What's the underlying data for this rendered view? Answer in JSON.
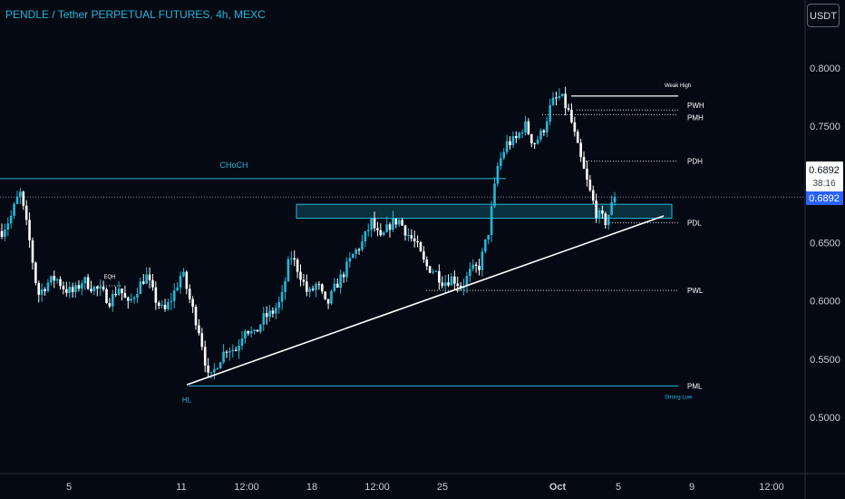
{
  "header": {
    "title": "PENDLE / Tether PERPETUAL FUTURES, 4h, MEXC",
    "currency_button": "USDT"
  },
  "colors": {
    "background": "#050913",
    "up": "#22b8d8",
    "down": "#ffffff",
    "accent": "#22b8d8",
    "price_badge": "#2962ff"
  },
  "chart_data": {
    "type": "candlestick",
    "instrument": "PENDLE / Tether PERPETUAL FUTURES",
    "timeframe": "4h",
    "exchange": "MEXC",
    "y_axis": {
      "ticks": [
        "0.8000",
        "0.7500",
        "0.7000",
        "0.6500",
        "0.6000",
        "0.5500",
        "0.5000"
      ],
      "ylim": [
        0.455,
        0.83
      ]
    },
    "x_axis": {
      "ticks": [
        "5",
        "11",
        "12:00",
        "18",
        "12:00",
        "25",
        "Oct",
        "5",
        "9",
        "12:00"
      ]
    },
    "current_price": {
      "close_label": "0.6892",
      "countdown": "38:16",
      "last_label": "0.6892",
      "value": 0.6892
    },
    "levels": [
      {
        "label": "PWH",
        "value": 0.764
      },
      {
        "label": "PMH",
        "value": 0.76
      },
      {
        "label": "PDH",
        "value": 0.72
      },
      {
        "label": "PDL",
        "value": 0.667
      },
      {
        "label": "PWL",
        "value": 0.609
      },
      {
        "label": "PML",
        "value": 0.527
      }
    ],
    "annotations": {
      "choch": {
        "label": "CHoCH",
        "value": 0.705
      },
      "eqh": {
        "label": "EQH",
        "value": 0.613
      },
      "weak_high": {
        "label": "Weak High",
        "value": 0.776
      },
      "strong_low": {
        "label": "Strong Low"
      },
      "hl": {
        "label": "HL",
        "value": 0.527
      },
      "demand_zone": {
        "top": 0.683,
        "bottom": 0.671
      },
      "trendline": {
        "from_value": 0.528,
        "to_value": 0.673
      }
    },
    "price_path": [
      0.66,
      0.672,
      0.694,
      0.655,
      0.605,
      0.615,
      0.62,
      0.61,
      0.607,
      0.618,
      0.612,
      0.608,
      0.6,
      0.612,
      0.596,
      0.61,
      0.622,
      0.602,
      0.59,
      0.605,
      0.625,
      0.597,
      0.572,
      0.53,
      0.548,
      0.56,
      0.558,
      0.578,
      0.57,
      0.585,
      0.59,
      0.6,
      0.64,
      0.625,
      0.605,
      0.615,
      0.595,
      0.612,
      0.625,
      0.64,
      0.65,
      0.668,
      0.652,
      0.665,
      0.67,
      0.658,
      0.648,
      0.63,
      0.626,
      0.616,
      0.62,
      0.612,
      0.625,
      0.63,
      0.66,
      0.715,
      0.735,
      0.738,
      0.752,
      0.735,
      0.745,
      0.77,
      0.776,
      0.76,
      0.728,
      0.7,
      0.675,
      0.668,
      0.689
    ]
  }
}
